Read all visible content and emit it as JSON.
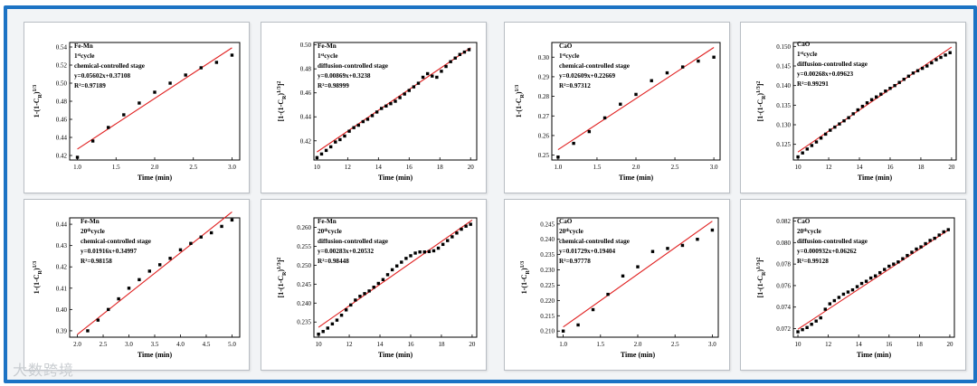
{
  "figure": {
    "frame_color": "#1c73c4",
    "fit_color": "#e02020",
    "point_color": "#000000",
    "watermark": "大数跨境"
  },
  "chart_data": [
    {
      "type": "scatter",
      "title": "Fe-Mn",
      "cycle": "1",
      "cycle_sup": "st",
      "cycle_word": "cycle",
      "stage": "chemical-controlled stage",
      "equation": "y=0.05602x+0.37108",
      "r2": "R²=0.97189",
      "xlabel": "Time (min)",
      "ylabel": "1-(1-C_R)^1/3",
      "ylabel_parts": [
        "1-(1-C",
        "R",
        ")",
        "1/3"
      ],
      "xlim": [
        0.9,
        3.1
      ],
      "ylim": [
        0.415,
        0.545
      ],
      "xticks": [
        1.0,
        1.5,
        2.0,
        2.5,
        3.0
      ],
      "xtick_labels": [
        "1.0",
        "1.5",
        "2.0",
        "2.5",
        "3.0"
      ],
      "yticks": [
        0.42,
        0.44,
        0.46,
        0.48,
        0.5,
        0.52,
        0.54
      ],
      "ytick_labels": [
        "0.42",
        "0.44",
        "0.46",
        "0.48",
        "0.50",
        "0.52",
        "0.54"
      ],
      "x": [
        1.0,
        1.2,
        1.4,
        1.6,
        1.8,
        2.0,
        2.2,
        2.4,
        2.6,
        2.8,
        3.0
      ],
      "y": [
        0.418,
        0.436,
        0.451,
        0.465,
        0.478,
        0.49,
        0.5,
        0.509,
        0.517,
        0.523,
        0.531
      ],
      "fit": {
        "slope": 0.05602,
        "intercept": 0.37108,
        "x_range": [
          1.0,
          3.0
        ]
      }
    },
    {
      "type": "scatter",
      "title": "Fe-Mn",
      "cycle": "1",
      "cycle_sup": "st",
      "cycle_word": "cycle",
      "stage": "diffusion-controlled stage",
      "equation": "y=0.00869x+0.3238",
      "r2": "R²=0.98999",
      "xlabel": "Time (min)",
      "ylabel": "[1-(1-C_R)^1/3]^2",
      "ylabel_parts": [
        "[1-(1-C",
        "R",
        ")",
        "1/3",
        "]",
        "2"
      ],
      "xlim": [
        9.8,
        20.4
      ],
      "ylim": [
        0.404,
        0.502
      ],
      "xticks": [
        10,
        12,
        14,
        16,
        18,
        20
      ],
      "xtick_labels": [
        "10",
        "12",
        "14",
        "16",
        "18",
        "20"
      ],
      "yticks": [
        0.42,
        0.44,
        0.46,
        0.48,
        0.5
      ],
      "ytick_labels": [
        "0.42",
        "0.44",
        "0.46",
        "0.48",
        "0.50"
      ],
      "x": [
        10.0,
        10.3,
        10.6,
        10.9,
        11.2,
        11.5,
        11.8,
        12.1,
        12.4,
        12.7,
        13.0,
        13.3,
        13.6,
        13.9,
        14.2,
        14.5,
        14.8,
        15.1,
        15.4,
        15.7,
        16.0,
        16.3,
        16.6,
        16.9,
        17.2,
        17.5,
        17.8,
        18.1,
        18.4,
        18.7,
        19.0,
        19.3,
        19.6,
        19.9
      ],
      "y": [
        0.406,
        0.409,
        0.412,
        0.415,
        0.419,
        0.421,
        0.424,
        0.428,
        0.431,
        0.433,
        0.436,
        0.438,
        0.441,
        0.444,
        0.447,
        0.449,
        0.451,
        0.453,
        0.456,
        0.459,
        0.462,
        0.465,
        0.468,
        0.473,
        0.476,
        0.474,
        0.473,
        0.478,
        0.482,
        0.486,
        0.489,
        0.492,
        0.494,
        0.496
      ],
      "fit": {
        "slope": 0.00869,
        "intercept": 0.3238,
        "x_range": [
          10.0,
          20.0
        ]
      }
    },
    {
      "type": "scatter",
      "title": "CaO",
      "cycle": "1",
      "cycle_sup": "st",
      "cycle_word": "cycle",
      "stage": "chemical-controlled stage",
      "equation": "y=0.02609x+0.22669",
      "r2": "R²=0.97312",
      "xlabel": "Time (min)",
      "ylabel": "1-(1-C_R)^1/3",
      "ylabel_parts": [
        "1-(1-C",
        "R",
        ")",
        "1/3"
      ],
      "xlim": [
        0.92,
        3.08
      ],
      "ylim": [
        0.2475,
        0.3075
      ],
      "xticks": [
        1.0,
        1.5,
        2.0,
        2.5,
        3.0
      ],
      "xtick_labels": [
        "1.0",
        "1.5",
        "2.0",
        "2.5",
        "3.0"
      ],
      "yticks": [
        0.25,
        0.26,
        0.27,
        0.28,
        0.29,
        0.3
      ],
      "ytick_labels": [
        "0.25",
        "0.26",
        "0.27",
        "0.28",
        "0.29",
        "0.30"
      ],
      "x": [
        1.0,
        1.2,
        1.4,
        1.6,
        1.8,
        2.0,
        2.2,
        2.4,
        2.6,
        2.8,
        3.0
      ],
      "y": [
        0.249,
        0.256,
        0.262,
        0.269,
        0.276,
        0.281,
        0.288,
        0.292,
        0.295,
        0.298,
        0.3
      ],
      "fit": {
        "slope": 0.02609,
        "intercept": 0.22669,
        "x_range": [
          1.0,
          3.0
        ]
      }
    },
    {
      "type": "scatter",
      "title": "CaO",
      "cycle": "1",
      "cycle_sup": "st",
      "cycle_word": "cycle",
      "stage": "diffusion-controlled stage",
      "equation": "y=0.00268x+0.09623",
      "r2": "R²=0.99291",
      "xlabel": "Time (min)",
      "ylabel": "[1-(1-C_R)^1/3]^2",
      "ylabel_parts": [
        "[1-(1-C",
        "R",
        ")",
        "1/3",
        "]",
        "2"
      ],
      "xlim": [
        9.7,
        20.3
      ],
      "ylim": [
        0.121,
        0.151
      ],
      "xticks": [
        10,
        12,
        14,
        16,
        18,
        20
      ],
      "xtick_labels": [
        "10",
        "12",
        "14",
        "16",
        "18",
        "20"
      ],
      "yticks": [
        0.125,
        0.13,
        0.135,
        0.14,
        0.145,
        0.15
      ],
      "ytick_labels": [
        "0.125",
        "0.130",
        "0.135",
        "0.140",
        "0.145",
        "0.150"
      ],
      "x": [
        10.0,
        10.3,
        10.6,
        10.9,
        11.2,
        11.5,
        11.8,
        12.1,
        12.4,
        12.7,
        13.0,
        13.3,
        13.6,
        13.9,
        14.2,
        14.5,
        14.8,
        15.1,
        15.4,
        15.7,
        16.0,
        16.3,
        16.6,
        16.9,
        17.2,
        17.5,
        17.8,
        18.1,
        18.4,
        18.7,
        19.0,
        19.3,
        19.6,
        19.9
      ],
      "y": [
        0.1218,
        0.1228,
        0.1238,
        0.1247,
        0.1256,
        0.1266,
        0.1276,
        0.1286,
        0.1294,
        0.1302,
        0.131,
        0.1318,
        0.1328,
        0.1338,
        0.1347,
        0.1356,
        0.1364,
        0.1371,
        0.1378,
        0.1386,
        0.1393,
        0.14,
        0.1408,
        0.1416,
        0.1424,
        0.1432,
        0.1438,
        0.1444,
        0.145,
        0.1458,
        0.1466,
        0.1472,
        0.1478,
        0.1484
      ],
      "fit": {
        "slope": 0.00268,
        "intercept": 0.09623,
        "x_range": [
          10.0,
          20.0
        ]
      }
    },
    {
      "type": "scatter",
      "title": "Fe-Mn",
      "cycle": "20",
      "cycle_sup": "th",
      "cycle_word": "cycle",
      "stage": "chemical-controlled stage",
      "equation": "y=0.01916x+0.34997",
      "r2": "R²=0.98158",
      "xlabel": "Time (min)",
      "ylabel": "1-(1-C_R)^1/3",
      "ylabel_parts": [
        "1-(1-C",
        "R",
        ")",
        "1/3"
      ],
      "xlim": [
        1.85,
        5.15
      ],
      "ylim": [
        0.387,
        0.443
      ],
      "xticks": [
        2.0,
        2.5,
        3.0,
        3.5,
        4.0,
        4.5,
        5.0
      ],
      "xtick_labels": [
        "2.0",
        "2.5",
        "3.0",
        "3.5",
        "4.0",
        "4.5",
        "5.0"
      ],
      "yticks": [
        0.39,
        0.4,
        0.41,
        0.42,
        0.43,
        0.44
      ],
      "ytick_labels": [
        "0.39",
        "0.40",
        "0.41",
        "0.42",
        "0.43",
        "0.44"
      ],
      "x": [
        2.2,
        2.4,
        2.6,
        2.8,
        3.0,
        3.2,
        3.4,
        3.6,
        3.8,
        4.0,
        4.2,
        4.4,
        4.6,
        4.8,
        5.0
      ],
      "y": [
        0.39,
        0.395,
        0.4,
        0.405,
        0.41,
        0.414,
        0.418,
        0.421,
        0.424,
        0.428,
        0.431,
        0.434,
        0.436,
        0.439,
        0.442
      ],
      "fit": {
        "slope": 0.01916,
        "intercept": 0.34997,
        "x_range": [
          2.0,
          5.0
        ]
      }
    },
    {
      "type": "scatter",
      "title": "Fe-Mn",
      "cycle": "20",
      "cycle_sup": "th",
      "cycle_word": "cycle",
      "stage": "diffusion-controlled stage",
      "equation": "y=0.00283x+0.20532",
      "r2": "R²=0.98448",
      "xlabel": "Time (min)",
      "ylabel": "[1-(1-C_R)^1/3]^2",
      "ylabel_parts": [
        "[1-(1-C",
        "R",
        ")",
        "1/3",
        "]",
        "2"
      ],
      "xlim": [
        9.7,
        20.3
      ],
      "ylim": [
        0.231,
        0.2625
      ],
      "xticks": [
        10,
        12,
        14,
        16,
        18,
        20
      ],
      "xtick_labels": [
        "10",
        "12",
        "14",
        "16",
        "18",
        "20"
      ],
      "yticks": [
        0.235,
        0.24,
        0.245,
        0.25,
        0.255,
        0.26
      ],
      "ytick_labels": [
        "0.235",
        "0.240",
        "0.245",
        "0.250",
        "0.255",
        "0.260"
      ],
      "x": [
        10.0,
        10.3,
        10.6,
        10.9,
        11.2,
        11.5,
        11.8,
        12.1,
        12.4,
        12.7,
        13.0,
        13.3,
        13.6,
        13.9,
        14.2,
        14.5,
        14.8,
        15.1,
        15.4,
        15.7,
        16.0,
        16.3,
        16.6,
        16.9,
        17.2,
        17.5,
        17.8,
        18.1,
        18.4,
        18.7,
        19.0,
        19.3,
        19.6,
        19.9
      ],
      "y": [
        0.2318,
        0.2325,
        0.2334,
        0.2345,
        0.2355,
        0.2368,
        0.2382,
        0.2395,
        0.2408,
        0.2418,
        0.2425,
        0.2432,
        0.2442,
        0.2452,
        0.2462,
        0.2475,
        0.2488,
        0.2498,
        0.2508,
        0.2518,
        0.2525,
        0.2532,
        0.2535,
        0.2535,
        0.2536,
        0.2538,
        0.2545,
        0.2555,
        0.2565,
        0.2575,
        0.2585,
        0.2595,
        0.2603,
        0.2608
      ],
      "fit": {
        "slope": 0.00283,
        "intercept": 0.20532,
        "x_range": [
          10.0,
          20.0
        ]
      }
    },
    {
      "type": "scatter",
      "title": "CaO",
      "cycle": "20",
      "cycle_sup": "th",
      "cycle_word": "cycle",
      "stage": "chemical-controlled stage",
      "equation": "y=0.01729x+0.19404",
      "r2": "R²=0.97778",
      "xlabel": "Time (min)",
      "ylabel": "1-(1-C_R)^1/3",
      "ylabel_parts": [
        "1-(1-C",
        "R",
        ")",
        "1/3"
      ],
      "xlim": [
        0.92,
        3.08
      ],
      "ylim": [
        0.208,
        0.247
      ],
      "xticks": [
        1.0,
        1.5,
        2.0,
        2.5,
        3.0
      ],
      "xtick_labels": [
        "1.0",
        "1.5",
        "2.0",
        "2.5",
        "3.0"
      ],
      "yticks": [
        0.21,
        0.215,
        0.22,
        0.225,
        0.23,
        0.235,
        0.24,
        0.245
      ],
      "ytick_labels": [
        "0.210",
        "0.215",
        "0.220",
        "0.225",
        "0.230",
        "0.235",
        "0.240",
        "0.245"
      ],
      "x": [
        1.0,
        1.2,
        1.4,
        1.6,
        1.8,
        2.0,
        2.2,
        2.4,
        2.6,
        2.8,
        3.0
      ],
      "y": [
        0.21,
        0.212,
        0.217,
        0.222,
        0.228,
        0.231,
        0.236,
        0.237,
        0.238,
        0.24,
        0.243
      ],
      "fit": {
        "slope": 0.01729,
        "intercept": 0.19404,
        "x_range": [
          1.0,
          3.0
        ]
      }
    },
    {
      "type": "scatter",
      "title": "CaO",
      "cycle": "20",
      "cycle_sup": "th",
      "cycle_word": "cycle",
      "stage": "diffusion-controlled stage",
      "equation": "y=0.000932x+0.06262",
      "r2": "R²=0.99128",
      "xlabel": "Time (min)",
      "ylabel": "[1-(1-C_R)^1/3]^2",
      "ylabel_parts": [
        "[1-(1-C",
        "R",
        ")",
        "1/3",
        "]",
        "2"
      ],
      "xlim": [
        9.7,
        20.3
      ],
      "ylim": [
        0.0712,
        0.0823
      ],
      "xticks": [
        10,
        12,
        14,
        16,
        18,
        20
      ],
      "xtick_labels": [
        "10",
        "12",
        "14",
        "16",
        "18",
        "20"
      ],
      "yticks": [
        0.072,
        0.074,
        0.076,
        0.078,
        0.08,
        0.082
      ],
      "ytick_labels": [
        "0.072",
        "0.074",
        "0.076",
        "0.078",
        "0.080",
        "0.082"
      ],
      "x": [
        10.0,
        10.3,
        10.6,
        10.9,
        11.2,
        11.5,
        11.8,
        12.1,
        12.4,
        12.7,
        13.0,
        13.3,
        13.6,
        13.9,
        14.2,
        14.5,
        14.8,
        15.1,
        15.4,
        15.7,
        16.0,
        16.3,
        16.6,
        16.9,
        17.2,
        17.5,
        17.8,
        18.1,
        18.4,
        18.7,
        19.0,
        19.3,
        19.6,
        19.9
      ],
      "y": [
        0.0717,
        0.0719,
        0.0721,
        0.0724,
        0.0727,
        0.073,
        0.0738,
        0.0743,
        0.0746,
        0.0749,
        0.0752,
        0.0754,
        0.0756,
        0.0759,
        0.0762,
        0.0764,
        0.0767,
        0.0769,
        0.0772,
        0.0775,
        0.0778,
        0.078,
        0.0782,
        0.0785,
        0.0788,
        0.0791,
        0.0794,
        0.0796,
        0.0799,
        0.0802,
        0.0804,
        0.0807,
        0.081,
        0.0812
      ],
      "fit": {
        "slope": 0.000932,
        "intercept": 0.06262,
        "x_range": [
          10.0,
          20.0
        ]
      }
    }
  ]
}
